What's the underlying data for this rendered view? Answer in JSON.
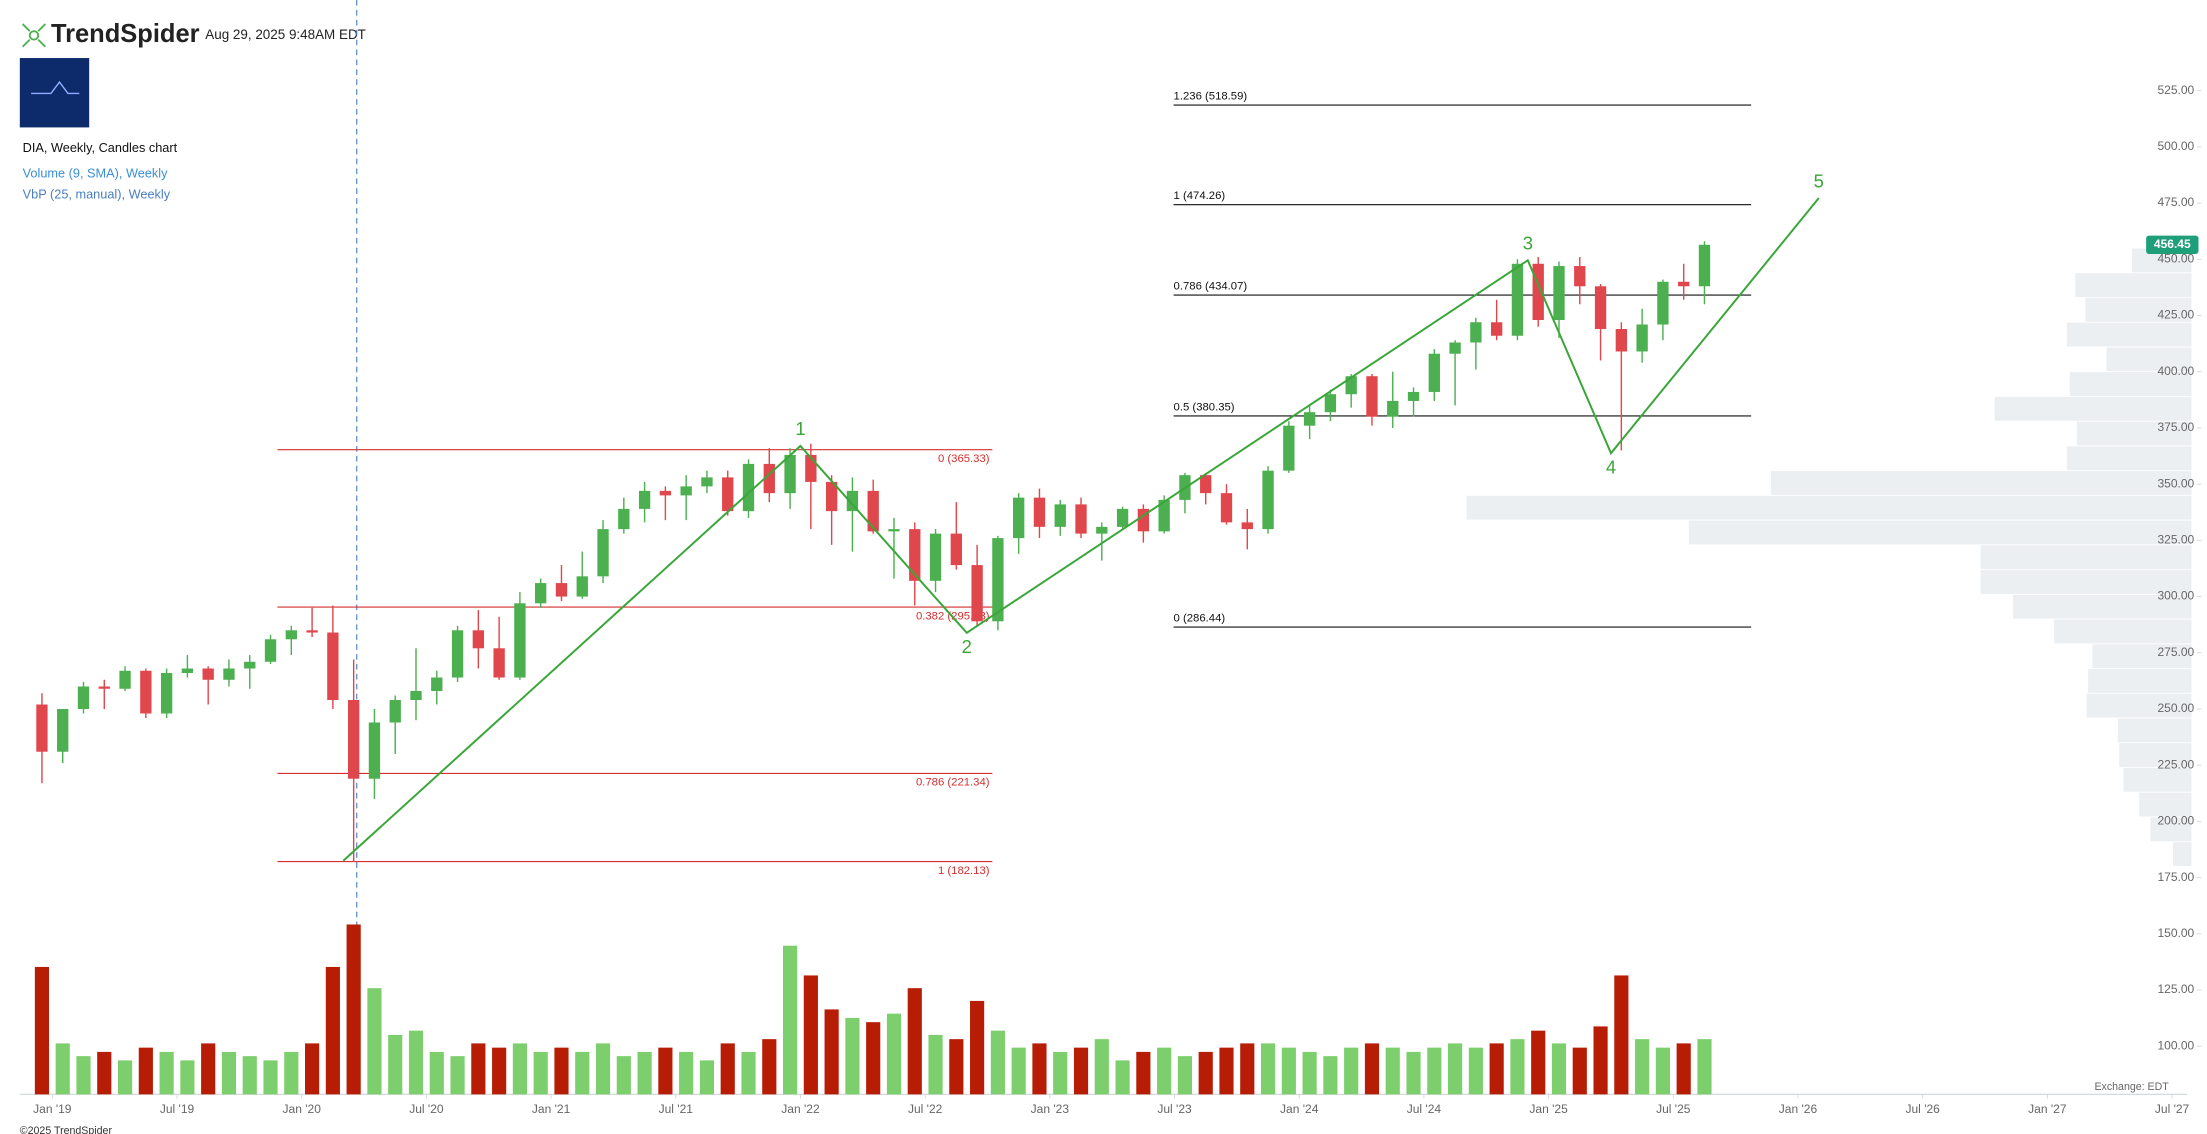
{
  "header": {
    "brand": "TrendSpider",
    "timestamp": "Aug 29, 2025 9:48AM EDT"
  },
  "legend": [
    "DIA, Weekly, Candles chart",
    "Volume (9, SMA), Weekly",
    "VbP (25, manual), Weekly"
  ],
  "footer": {
    "copyright": "©2025 TrendSpider",
    "exchange": "Exchange: EDT"
  },
  "chart_data": {
    "type": "candlestick",
    "x": [
      "2018-12",
      "2019-01",
      "2019-02",
      "2019-03",
      "2019-04",
      "2019-05",
      "2019-06",
      "2019-07",
      "2019-08",
      "2019-09",
      "2019-10",
      "2019-11",
      "2019-12",
      "2020-01",
      "2020-02",
      "2020-03",
      "2020-04",
      "2020-05",
      "2020-06",
      "2020-07",
      "2020-08",
      "2020-09",
      "2020-10",
      "2020-11",
      "2020-12",
      "2021-01",
      "2021-02",
      "2021-03",
      "2021-04",
      "2021-05",
      "2021-06",
      "2021-07",
      "2021-08",
      "2021-09",
      "2021-10",
      "2021-11",
      "2021-12",
      "2022-01",
      "2022-02",
      "2022-03",
      "2022-04",
      "2022-05",
      "2022-06",
      "2022-07",
      "2022-08",
      "2022-09",
      "2022-10",
      "2022-11",
      "2022-12",
      "2023-01",
      "2023-02",
      "2023-03",
      "2023-04",
      "2023-05",
      "2023-06",
      "2023-07",
      "2023-08",
      "2023-09",
      "2023-10",
      "2023-11",
      "2023-12",
      "2024-01",
      "2024-02",
      "2024-03",
      "2024-04",
      "2024-05",
      "2024-06",
      "2024-07",
      "2024-08",
      "2024-09",
      "2024-10",
      "2024-11",
      "2024-12",
      "2025-01",
      "2025-02",
      "2025-03",
      "2025-04",
      "2025-05",
      "2025-06",
      "2025-07",
      "2025-08"
    ],
    "open": [
      252,
      231,
      250,
      260,
      259,
      267,
      248,
      266,
      268,
      263,
      268,
      271,
      281,
      285,
      284,
      254,
      219,
      244,
      254,
      258,
      264,
      285,
      277,
      264,
      297,
      306,
      300,
      309,
      330,
      339,
      347,
      345,
      349,
      353,
      338,
      359,
      346,
      363,
      351,
      338,
      347,
      329,
      330,
      307,
      328,
      314,
      289,
      326,
      344,
      331,
      341,
      328,
      331,
      339,
      329,
      343,
      354,
      346,
      333,
      330,
      356,
      376,
      382,
      390,
      398,
      380,
      387,
      391,
      408,
      413,
      422,
      416,
      448,
      423,
      447,
      438,
      419,
      409,
      421,
      440,
      438
    ],
    "high": [
      257,
      250,
      262,
      263,
      269,
      268,
      268,
      274,
      269,
      272,
      274,
      283,
      287,
      295,
      296,
      272,
      250,
      256,
      277,
      267,
      287,
      294,
      291,
      302,
      308,
      314,
      320,
      334,
      344,
      351,
      349,
      354,
      356,
      356,
      361,
      366,
      366,
      368,
      354,
      353,
      352,
      335,
      333,
      330,
      342,
      323,
      327,
      346,
      348,
      343,
      344,
      333,
      340,
      341,
      345,
      355,
      355,
      350,
      339,
      358,
      378,
      385,
      392,
      399,
      399,
      400,
      393,
      410,
      414,
      424,
      432,
      450,
      451,
      449,
      451,
      439,
      422,
      428,
      441,
      448,
      458
    ],
    "low": [
      217,
      226,
      248,
      250,
      258,
      246,
      246,
      264,
      252,
      260,
      259,
      270,
      274,
      282,
      250,
      182,
      210,
      230,
      245,
      252,
      262,
      268,
      263,
      263,
      295,
      298,
      299,
      306,
      328,
      333,
      334,
      334,
      346,
      336,
      335,
      342,
      339,
      330,
      323,
      320,
      328,
      308,
      296,
      302,
      312,
      287,
      285,
      319,
      326,
      327,
      326,
      316,
      330,
      324,
      328,
      337,
      341,
      332,
      321,
      328,
      355,
      370,
      378,
      384,
      376,
      375,
      380,
      387,
      385,
      401,
      414,
      414,
      420,
      415,
      430,
      405,
      365,
      404,
      414,
      432,
      430
    ],
    "close": [
      231,
      250,
      260,
      259,
      267,
      248,
      266,
      268,
      263,
      268,
      271,
      281,
      285,
      284,
      254,
      219,
      244,
      254,
      258,
      264,
      285,
      277,
      264,
      297,
      306,
      300,
      309,
      330,
      339,
      347,
      345,
      349,
      353,
      338,
      359,
      346,
      363,
      351,
      338,
      347,
      329,
      330,
      307,
      328,
      314,
      289,
      326,
      344,
      331,
      341,
      328,
      331,
      339,
      329,
      343,
      354,
      346,
      333,
      330,
      356,
      376,
      382,
      390,
      398,
      380,
      387,
      391,
      408,
      413,
      422,
      416,
      448,
      423,
      447,
      438,
      419,
      409,
      421,
      440,
      438,
      456.45
    ],
    "volume": [
      30,
      12,
      9,
      10,
      8,
      11,
      10,
      8,
      12,
      10,
      9,
      8,
      10,
      12,
      30,
      40,
      25,
      14,
      15,
      10,
      9,
      12,
      11,
      12,
      10,
      11,
      10,
      12,
      9,
      10,
      11,
      10,
      8,
      12,
      10,
      13,
      35,
      28,
      20,
      18,
      17,
      19,
      25,
      14,
      13,
      22,
      15,
      11,
      12,
      10,
      11,
      13,
      8,
      10,
      11,
      9,
      10,
      11,
      12,
      12,
      11,
      10,
      9,
      11,
      12,
      11,
      10,
      11,
      12,
      11,
      12,
      13,
      15,
      12,
      11,
      16,
      28,
      13,
      11,
      12,
      13
    ],
    "up_color": "#4caf50",
    "down_color": "#e0474c",
    "volume_up_color": "#7ccf6c",
    "volume_down_color": "#b71c05",
    "xlim": [
      "2018-11",
      "2027-08"
    ],
    "xticks": [
      {
        "value": "2019-01",
        "label": "Jan '19"
      },
      {
        "value": "2019-07",
        "label": "Jul '19"
      },
      {
        "value": "2020-01",
        "label": "Jan '20"
      },
      {
        "value": "2020-07",
        "label": "Jul '20"
      },
      {
        "value": "2021-01",
        "label": "Jan '21"
      },
      {
        "value": "2021-07",
        "label": "Jul '21"
      },
      {
        "value": "2022-01",
        "label": "Jan '22"
      },
      {
        "value": "2022-07",
        "label": "Jul '22"
      },
      {
        "value": "2023-01",
        "label": "Jan '23"
      },
      {
        "value": "2023-07",
        "label": "Jul '23"
      },
      {
        "value": "2024-01",
        "label": "Jan '24"
      },
      {
        "value": "2024-07",
        "label": "Jul '24"
      },
      {
        "value": "2025-01",
        "label": "Jan '25"
      },
      {
        "value": "2025-07",
        "label": "Jul '25"
      },
      {
        "value": "2026-01",
        "label": "Jan '26"
      },
      {
        "value": "2026-07",
        "label": "Jul '26"
      },
      {
        "value": "2027-01",
        "label": "Jan '27"
      },
      {
        "value": "2027-07",
        "label": "Jul '27"
      }
    ],
    "ylim": [
      80,
      565
    ],
    "yticks": [
      {
        "value": 100,
        "label": "100.00"
      },
      {
        "value": 125,
        "label": "125.00"
      },
      {
        "value": 150,
        "label": "150.00"
      },
      {
        "value": 175,
        "label": "175.00"
      },
      {
        "value": 200,
        "label": "200.00"
      },
      {
        "value": 225,
        "label": "225.00"
      },
      {
        "value": 250,
        "label": "250.00"
      },
      {
        "value": 275,
        "label": "275.00"
      },
      {
        "value": 300,
        "label": "300.00"
      },
      {
        "value": 325,
        "label": "325.00"
      },
      {
        "value": 350,
        "label": "350.00"
      },
      {
        "value": 375,
        "label": "375.00"
      },
      {
        "value": 400,
        "label": "400.00"
      },
      {
        "value": 425,
        "label": "425.00"
      },
      {
        "value": 450,
        "label": "450.00"
      },
      {
        "value": 475,
        "label": "475.00"
      },
      {
        "value": 500,
        "label": "500.00"
      },
      {
        "value": 525,
        "label": "525.00"
      }
    ],
    "grid": false,
    "price_tag_color": "#1f9e7a",
    "fib_retracement": {
      "color": "#d32f2f",
      "levels": [
        {
          "value": 365.33,
          "label": "0 (365.33)"
        },
        {
          "value": 295.33,
          "label": "0.382 (295.33)"
        },
        {
          "value": 221.34,
          "label": "0.786 (221.34)"
        },
        {
          "value": 182.13,
          "label": "1 (182.13)"
        }
      ]
    },
    "fib_extension": {
      "color": "#111111",
      "levels": [
        {
          "value": 518.59,
          "label": "1.236 (518.59)"
        },
        {
          "value": 474.26,
          "label": "1 (474.26)"
        },
        {
          "value": 434.07,
          "label": "0.786 (434.07)"
        },
        {
          "value": 380.35,
          "label": "0.5 (380.35)"
        },
        {
          "value": 286.44,
          "label": "0 (286.44)"
        }
      ]
    },
    "waves": {
      "color": "#3aa63a",
      "labels": [
        null,
        "1",
        "2",
        "3",
        "4",
        "5"
      ],
      "x": [
        "2020-03",
        "2022-01",
        "2022-09",
        "2024-12",
        "2025-04",
        "2026-02"
      ],
      "y": [
        182.5,
        367.0,
        283.9,
        449.5,
        363.8,
        477.2
      ]
    },
    "volume_profile": {
      "color": "#eceff1",
      "bins": [
        180,
        191,
        202,
        213,
        224,
        235,
        246,
        257,
        268,
        279,
        290,
        301,
        312,
        323,
        334,
        345,
        356,
        367,
        378,
        389,
        400,
        411,
        422,
        433,
        444,
        455
      ],
      "values": [
        13,
        29,
        37,
        48,
        51,
        52,
        74,
        73,
        70,
        97,
        126,
        149,
        149,
        355,
        512,
        297,
        88,
        81,
        139,
        86,
        60,
        88,
        75,
        82,
        42
      ]
    }
  }
}
